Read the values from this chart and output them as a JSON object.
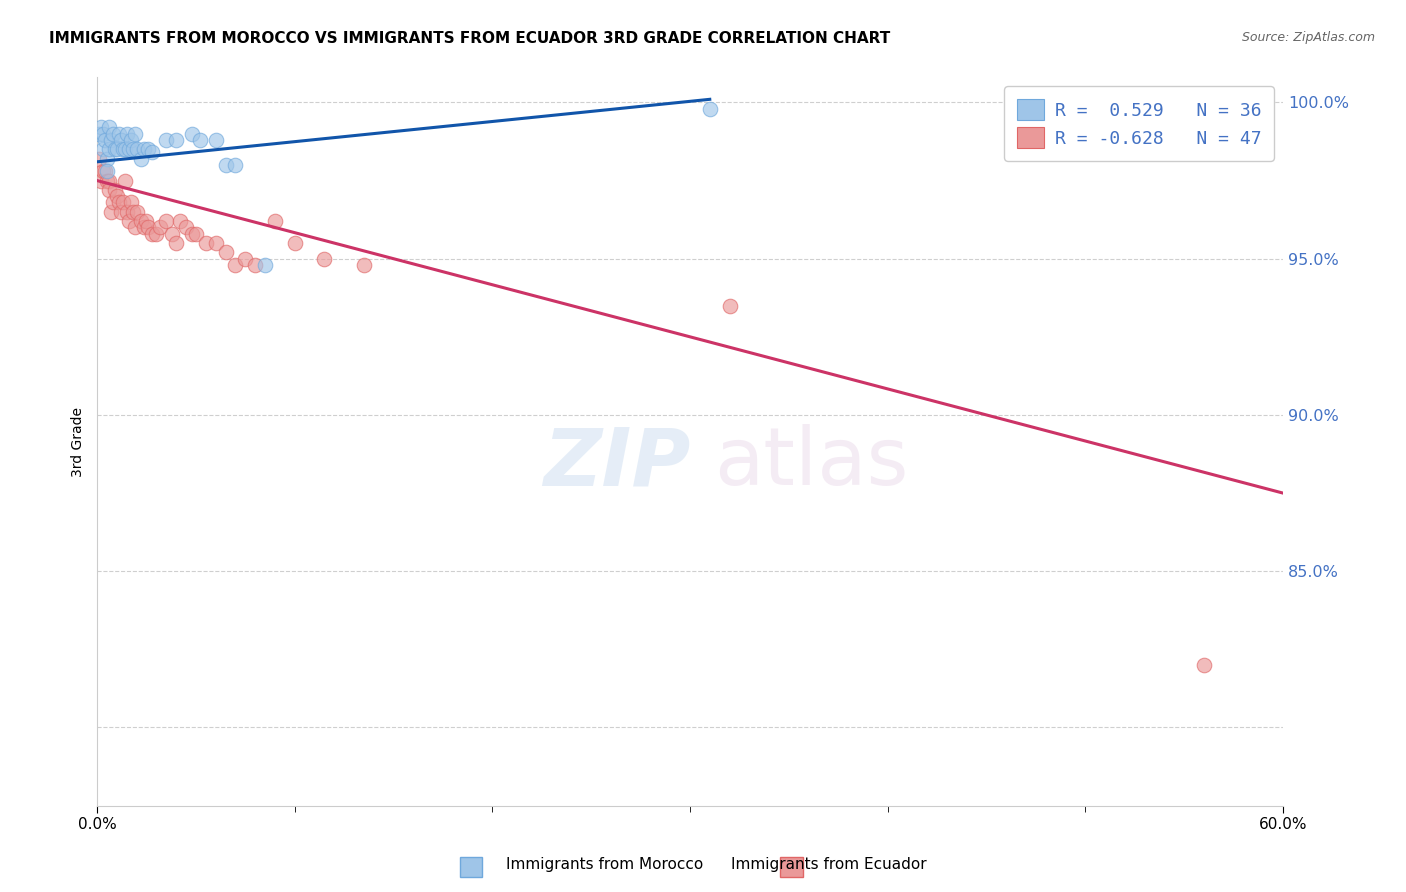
{
  "title": "IMMIGRANTS FROM MOROCCO VS IMMIGRANTS FROM ECUADOR 3RD GRADE CORRELATION CHART",
  "source": "Source: ZipAtlas.com",
  "ylabel": "3rd Grade",
  "xlim": [
    0.0,
    0.6
  ],
  "ylim": [
    0.775,
    1.008
  ],
  "yticks": [
    0.8,
    0.85,
    0.9,
    0.95,
    1.0
  ],
  "ytick_labels": [
    "",
    "85.0%",
    "90.0%",
    "95.0%",
    "100.0%"
  ],
  "morocco_color": "#9fc5e8",
  "ecuador_color": "#ea9999",
  "morocco_edge": "#6fa8dc",
  "ecuador_edge": "#e06666",
  "R_morocco": 0.529,
  "N_morocco": 36,
  "R_ecuador": -0.628,
  "N_ecuador": 47,
  "legend_label_morocco": "Immigrants from Morocco",
  "legend_label_ecuador": "Immigrants from Ecuador",
  "background_color": "#ffffff",
  "grid_color": "#bbbbbb",
  "morocco_line_color": "#1155aa",
  "ecuador_line_color": "#cc3366",
  "morocco_x": [
    0.001,
    0.002,
    0.003,
    0.003,
    0.004,
    0.005,
    0.005,
    0.006,
    0.006,
    0.007,
    0.008,
    0.009,
    0.01,
    0.011,
    0.012,
    0.013,
    0.014,
    0.015,
    0.016,
    0.017,
    0.018,
    0.019,
    0.02,
    0.022,
    0.024,
    0.026,
    0.028,
    0.035,
    0.04,
    0.048,
    0.052,
    0.06,
    0.065,
    0.07,
    0.085,
    0.31
  ],
  "morocco_y": [
    0.99,
    0.992,
    0.985,
    0.99,
    0.988,
    0.982,
    0.978,
    0.985,
    0.992,
    0.988,
    0.99,
    0.985,
    0.985,
    0.99,
    0.988,
    0.985,
    0.985,
    0.99,
    0.985,
    0.988,
    0.985,
    0.99,
    0.985,
    0.982,
    0.985,
    0.985,
    0.984,
    0.988,
    0.988,
    0.99,
    0.988,
    0.988,
    0.98,
    0.98,
    0.948,
    0.998
  ],
  "ecuador_x": [
    0.001,
    0.002,
    0.003,
    0.004,
    0.005,
    0.006,
    0.006,
    0.007,
    0.008,
    0.009,
    0.01,
    0.011,
    0.012,
    0.013,
    0.014,
    0.015,
    0.016,
    0.017,
    0.018,
    0.019,
    0.02,
    0.022,
    0.024,
    0.025,
    0.026,
    0.028,
    0.03,
    0.032,
    0.035,
    0.038,
    0.04,
    0.042,
    0.045,
    0.048,
    0.05,
    0.055,
    0.06,
    0.065,
    0.07,
    0.075,
    0.08,
    0.09,
    0.1,
    0.115,
    0.135,
    0.32,
    0.56
  ],
  "ecuador_y": [
    0.982,
    0.975,
    0.978,
    0.978,
    0.975,
    0.975,
    0.972,
    0.965,
    0.968,
    0.972,
    0.97,
    0.968,
    0.965,
    0.968,
    0.975,
    0.965,
    0.962,
    0.968,
    0.965,
    0.96,
    0.965,
    0.962,
    0.96,
    0.962,
    0.96,
    0.958,
    0.958,
    0.96,
    0.962,
    0.958,
    0.955,
    0.962,
    0.96,
    0.958,
    0.958,
    0.955,
    0.955,
    0.952,
    0.948,
    0.95,
    0.948,
    0.962,
    0.955,
    0.95,
    0.948,
    0.935,
    0.82
  ],
  "morocco_line_x": [
    0.0,
    0.31
  ],
  "morocco_line_y": [
    0.981,
    1.001
  ],
  "ecuador_line_x": [
    0.0,
    0.6
  ],
  "ecuador_line_y": [
    0.975,
    0.875
  ]
}
